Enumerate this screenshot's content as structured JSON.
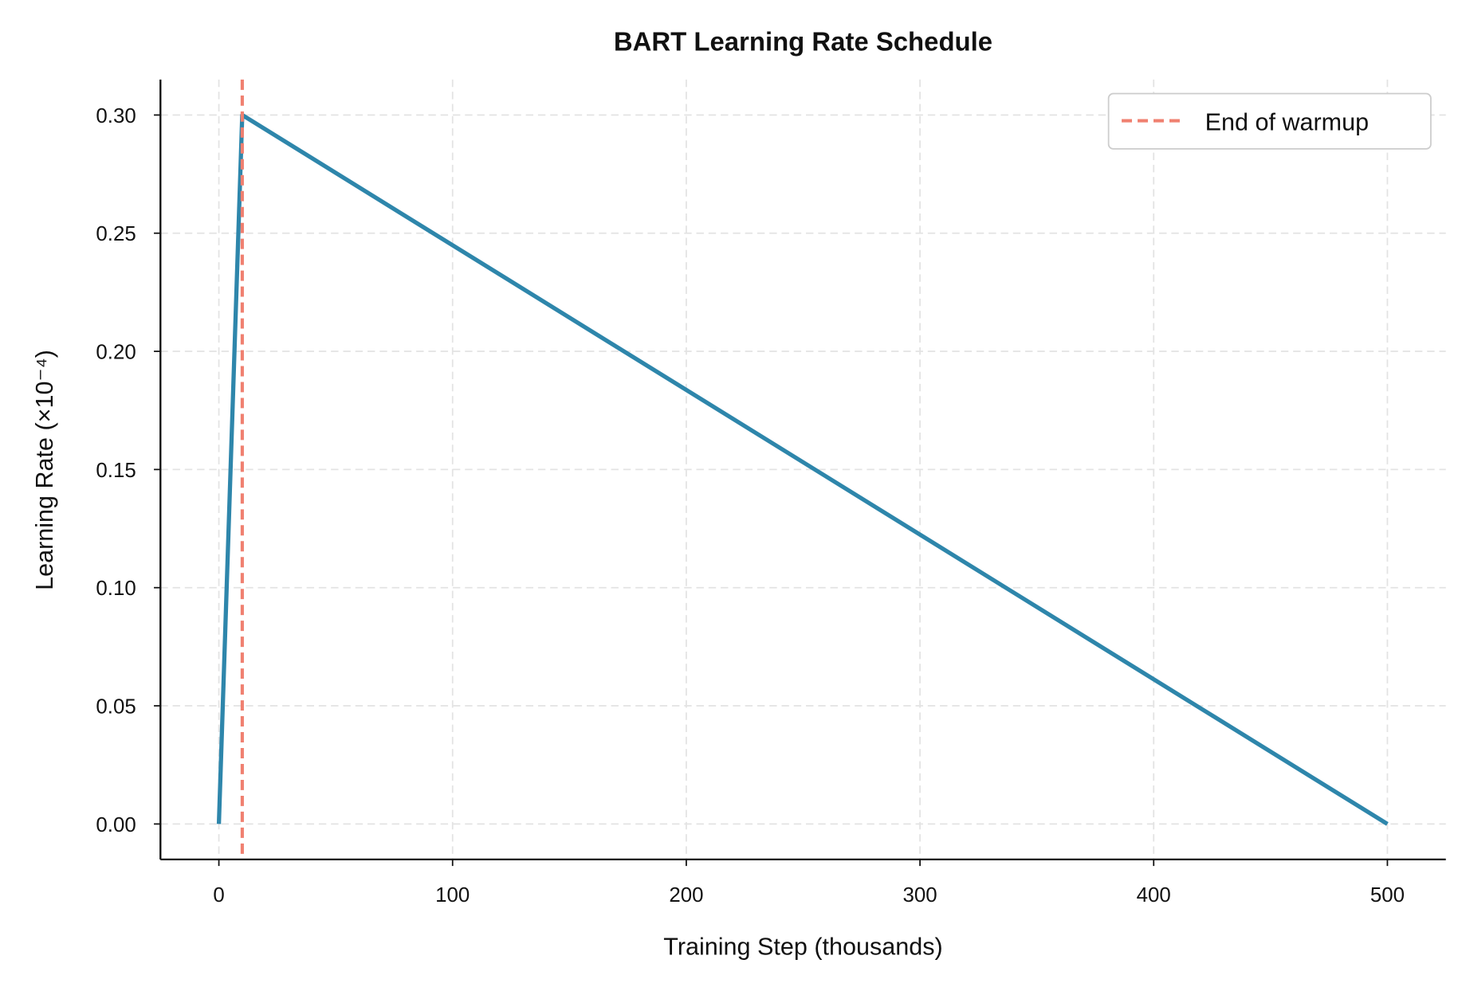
{
  "chart_data": {
    "type": "line",
    "title": "BART Learning Rate Schedule",
    "xlabel": "Training Step (thousands)",
    "ylabel": "Learning Rate (×10⁻⁴)",
    "xlim": [
      -25,
      525
    ],
    "ylim": [
      -0.015,
      0.315
    ],
    "xticks": [
      0,
      100,
      200,
      300,
      400,
      500
    ],
    "xtick_labels": [
      "0",
      "100",
      "200",
      "300",
      "400",
      "500"
    ],
    "yticks": [
      0.0,
      0.05,
      0.1,
      0.15,
      0.2,
      0.25,
      0.3
    ],
    "ytick_labels": [
      "0.00",
      "0.05",
      "0.10",
      "0.15",
      "0.20",
      "0.25",
      "0.30"
    ],
    "grid": true,
    "legend_position": "top-right",
    "series": [
      {
        "x": [
          0,
          10,
          500
        ],
        "y": [
          0.0,
          0.3,
          0.0
        ],
        "color": "#2e86ab"
      }
    ],
    "vlines": [
      {
        "name": "End of warmup",
        "x": 10,
        "color": "#f08070",
        "style": "dashed"
      }
    ]
  }
}
